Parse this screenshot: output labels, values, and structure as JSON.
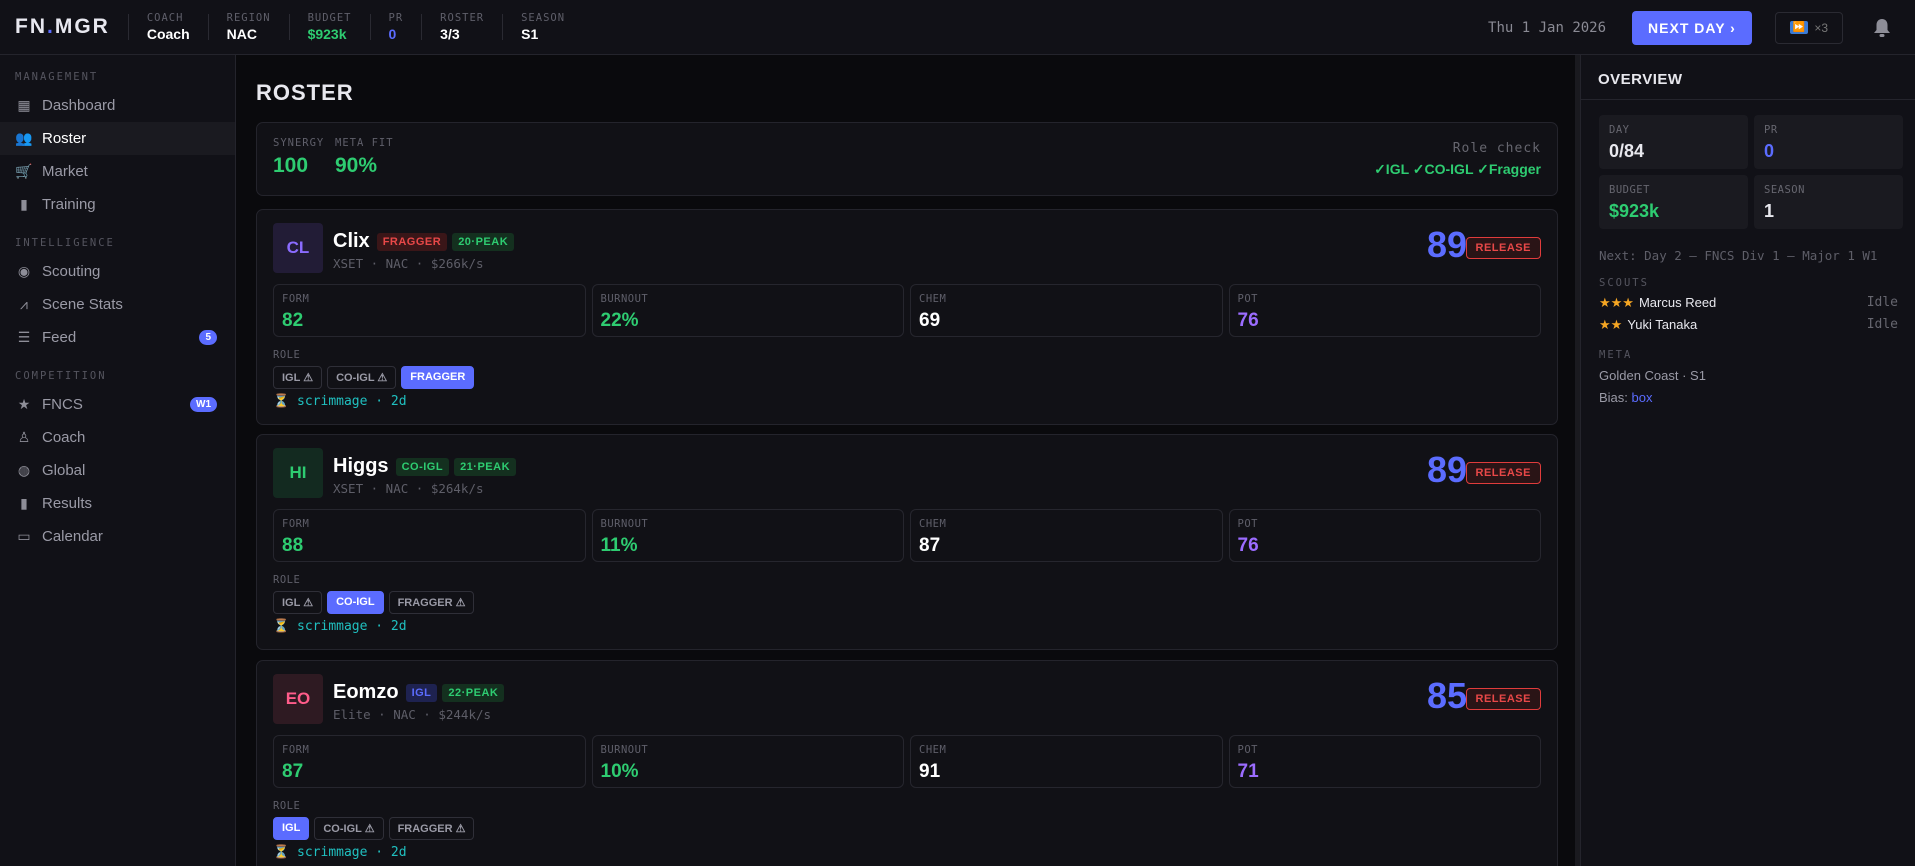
{
  "header": {
    "logo": "FN.MGR",
    "stats": [
      {
        "label": "COACH",
        "value": "Coach",
        "color": "#ffffff"
      },
      {
        "label": "REGION",
        "value": "NAC",
        "color": "#ffffff"
      },
      {
        "label": "BUDGET",
        "value": "$923k",
        "color": "#2ecc71"
      },
      {
        "label": "PR",
        "value": "0",
        "color": "#5b6cff"
      },
      {
        "label": "ROSTER",
        "value": "3/3",
        "color": "#ffffff"
      },
      {
        "label": "SEASON",
        "value": "S1",
        "color": "#ffffff"
      }
    ],
    "date": "Thu 1 Jan 2026",
    "next_day": "NEXT DAY ›",
    "fast_forward": "×3",
    "fast_forward_icon": "⏩"
  },
  "sidebar": {
    "sections": [
      {
        "title": "MANAGEMENT",
        "items": [
          {
            "label": "Dashboard",
            "icon": "grid"
          },
          {
            "label": "Roster",
            "icon": "users",
            "active": true
          },
          {
            "label": "Market",
            "icon": "cart"
          },
          {
            "label": "Training",
            "icon": "bars"
          }
        ]
      },
      {
        "title": "INTELLIGENCE",
        "items": [
          {
            "label": "Scouting",
            "icon": "eye"
          },
          {
            "label": "Scene Stats",
            "icon": "trend"
          },
          {
            "label": "Feed",
            "icon": "feed",
            "badge": "5"
          }
        ]
      },
      {
        "title": "COMPETITION",
        "items": [
          {
            "label": "FNCS",
            "icon": "star",
            "badge": "W1"
          },
          {
            "label": "Coach",
            "icon": "coach"
          },
          {
            "label": "Global",
            "icon": "globe"
          },
          {
            "label": "Results",
            "icon": "bars"
          },
          {
            "label": "Calendar",
            "icon": "calendar"
          }
        ]
      }
    ]
  },
  "main": {
    "title": "ROSTER",
    "summary": {
      "synergy_label": "SYNERGY",
      "synergy": "100",
      "meta_label": "META FIT",
      "meta": "90%",
      "role_check_label": "Role check",
      "role_check": "✓IGL ✓CO-IGL ✓Fragger"
    },
    "role_label": "ROLE",
    "release": "RELEASE",
    "players": [
      {
        "initials": "CL",
        "name": "Clix",
        "role_tag": "FRAGGER",
        "age_tag": "20·PEAK",
        "sub": "XSET · NAC · $266k/s",
        "ovr": "89",
        "form": "82",
        "burnout": "22%",
        "chem": "69",
        "pot": "76",
        "roles": [
          "IGL ⚠",
          "CO-IGL ⚠",
          "FRAGGER"
        ],
        "active_role": 2,
        "activity": "scrimmage · 2d",
        "avatar_bg": "#221c36",
        "avatar_fg": "#8b6cff",
        "tag_bg": "#3a1618",
        "tag_fg": "#e84848"
      },
      {
        "initials": "HI",
        "name": "Higgs",
        "role_tag": "CO-IGL",
        "age_tag": "21·PEAK",
        "sub": "XSET · NAC · $264k/s",
        "ovr": "89",
        "form": "88",
        "burnout": "11%",
        "chem": "87",
        "pot": "76",
        "roles": [
          "IGL ⚠",
          "CO-IGL",
          "FRAGGER ⚠"
        ],
        "active_role": 1,
        "activity": "scrimmage · 2d",
        "avatar_bg": "#132a20",
        "avatar_fg": "#2ecc71",
        "tag_bg": "#14301f",
        "tag_fg": "#2ecc71"
      },
      {
        "initials": "EO",
        "name": "Eomzo",
        "role_tag": "IGL",
        "age_tag": "22·PEAK",
        "sub": "Elite · NAC · $244k/s",
        "ovr": "85",
        "form": "87",
        "burnout": "10%",
        "chem": "91",
        "pot": "71",
        "roles": [
          "IGL",
          "CO-IGL ⚠",
          "FRAGGER ⚠"
        ],
        "active_role": 0,
        "activity": "scrimmage · 2d",
        "avatar_bg": "#2e1a22",
        "avatar_fg": "#ff5c8a",
        "tag_bg": "#1e2250",
        "tag_fg": "#5b6cff"
      }
    ],
    "stat_labels": {
      "form": "FORM",
      "burnout": "BURNOUT",
      "chem": "CHEM",
      "pot": "POT"
    }
  },
  "overview": {
    "title": "OVERVIEW",
    "day_label": "DAY",
    "day": "0/84",
    "pr_label": "PR",
    "pr": "0",
    "budget_label": "BUDGET",
    "budget": "$923k",
    "season_label": "SEASON",
    "season": "1",
    "next": "Next: Day 2 — FNCS Div 1 — Major 1 W1",
    "scouts_label": "SCOUTS",
    "scouts": [
      {
        "stars": "★★★",
        "name": "Marcus Reed",
        "status": "Idle"
      },
      {
        "stars": "★★",
        "name": "Yuki Tanaka",
        "status": "Idle"
      }
    ],
    "meta_label": "META",
    "meta": "Golden Coast · S1",
    "bias_label": "Bias: ",
    "bias": "box"
  },
  "colors": {
    "accent": "#5b6cff",
    "green": "#2ecc71",
    "red": "#e84848",
    "purple": "#9b6cff"
  }
}
